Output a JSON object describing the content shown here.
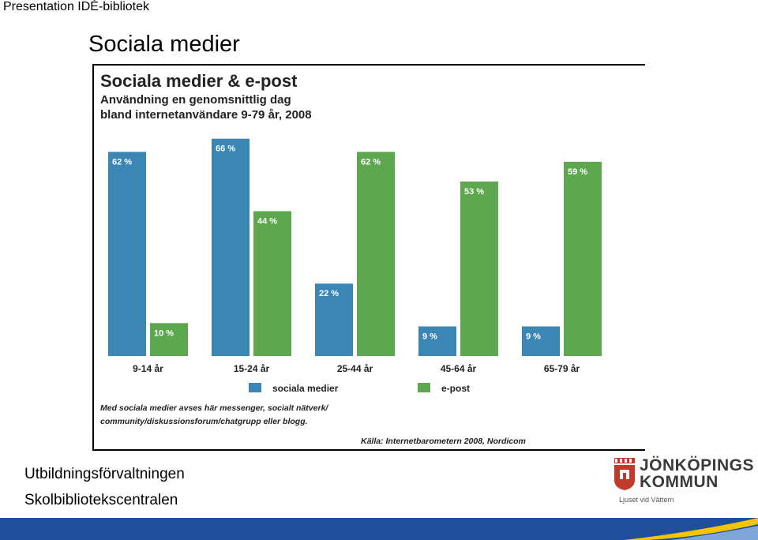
{
  "header": {
    "title": "Presentation IDÈ-bibliotek"
  },
  "slide": {
    "title": "Sociala medier"
  },
  "chart_data": {
    "type": "bar",
    "title": "Sociala medier & e-post",
    "subtitle_line1": "Användning en genomsnittlig dag",
    "subtitle_line2": "bland internetanvändare 9-79 år, 2008",
    "categories": [
      "9-14 år",
      "15-24 år",
      "25-44 år",
      "45-64 år",
      "65-79 år"
    ],
    "series": [
      {
        "name": "sociala medier",
        "color": "#3a86b4",
        "values": [
          62,
          66,
          22,
          9,
          9
        ]
      },
      {
        "name": "e-post",
        "color": "#5da84f",
        "values": [
          10,
          44,
          62,
          53,
          59
        ]
      }
    ],
    "value_labels": [
      [
        "62 %",
        "66 %",
        "22 %",
        "9 %",
        "9 %"
      ],
      [
        "10 %",
        "44 %",
        "62 %",
        "53 %",
        "59 %"
      ]
    ],
    "ylim": [
      0,
      70
    ],
    "grid": false,
    "legend_position": "bottom",
    "note_line1": "Med sociala medier avses här messenger, socialt nätverk/",
    "note_line2": "community/diskussionsforum/chatgrupp eller blogg.",
    "source": "Källa: Internetbarometern 2008, Nordicom"
  },
  "footer": {
    "line1": "Utbildningsförvaltningen",
    "line2": "Skolbibliotekscentralen"
  },
  "logo": {
    "name_line1": "JÖNKÖPINGS",
    "name_line2": "KOMMUN",
    "tagline": "Ljuset vid Vättern"
  },
  "colors": {
    "bottom_bar": "#1f4e9c",
    "accent_yellow": "#f4c400"
  }
}
